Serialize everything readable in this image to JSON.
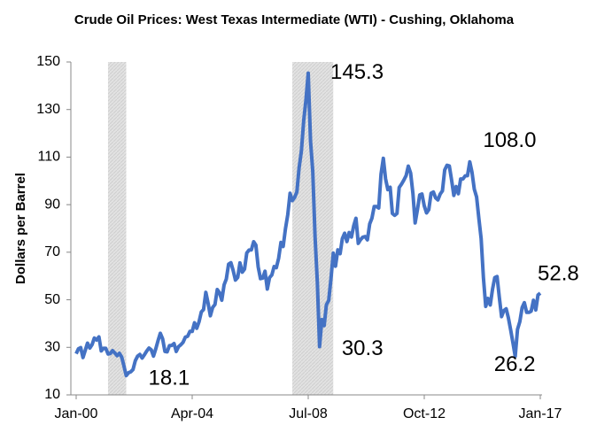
{
  "chart_data": {
    "type": "line",
    "title": "Crude Oil Prices: West Texas Intermediate (WTI) - Cushing, Oklahoma",
    "y_label": "Dollars per Barrel",
    "color": "#4472c4",
    "shade_color": "#d9d9d9",
    "xlim": [
      "2000-01",
      "2017-01"
    ],
    "xticks": [
      {
        "value": "2000-01",
        "label": "Jan-00"
      },
      {
        "value": "2004-04",
        "label": "Apr-04"
      },
      {
        "value": "2008-07",
        "label": "Jul-08"
      },
      {
        "value": "2012-10",
        "label": "Oct-12"
      },
      {
        "value": "2017-01",
        "label": "Jan-17"
      }
    ],
    "ylim": [
      10,
      150
    ],
    "yticks": [
      10,
      30,
      50,
      70,
      90,
      110,
      130,
      150
    ],
    "shaded_periods": [
      {
        "start": "2001-03",
        "end": "2001-11"
      },
      {
        "start": "2007-12",
        "end": "2009-06"
      }
    ],
    "annotations": [
      {
        "x": "2001-11",
        "value": 18.1,
        "label": "18.1"
      },
      {
        "x": "2008-07",
        "value": 145.3,
        "label": "145.3"
      },
      {
        "x": "2008-12",
        "value": 30.3,
        "label": "30.3"
      },
      {
        "x": "2014-06",
        "value": 108.0,
        "label": "108.0"
      },
      {
        "x": "2016-02",
        "value": 26.2,
        "label": "26.2"
      },
      {
        "x": "2017-01",
        "value": 52.8,
        "label": "52.8"
      }
    ],
    "x": [
      "2000-01",
      "2000-02",
      "2000-03",
      "2000-04",
      "2000-05",
      "2000-06",
      "2000-07",
      "2000-08",
      "2000-09",
      "2000-10",
      "2000-11",
      "2000-12",
      "2001-01",
      "2001-02",
      "2001-03",
      "2001-04",
      "2001-05",
      "2001-06",
      "2001-07",
      "2001-08",
      "2001-09",
      "2001-10",
      "2001-11",
      "2001-12",
      "2002-01",
      "2002-02",
      "2002-03",
      "2002-04",
      "2002-05",
      "2002-06",
      "2002-07",
      "2002-08",
      "2002-09",
      "2002-10",
      "2002-11",
      "2002-12",
      "2003-01",
      "2003-02",
      "2003-03",
      "2003-04",
      "2003-05",
      "2003-06",
      "2003-07",
      "2003-08",
      "2003-09",
      "2003-10",
      "2003-11",
      "2003-12",
      "2004-01",
      "2004-02",
      "2004-03",
      "2004-04",
      "2004-05",
      "2004-06",
      "2004-07",
      "2004-08",
      "2004-09",
      "2004-10",
      "2004-11",
      "2004-12",
      "2005-01",
      "2005-02",
      "2005-03",
      "2005-04",
      "2005-05",
      "2005-06",
      "2005-07",
      "2005-08",
      "2005-09",
      "2005-10",
      "2005-11",
      "2005-12",
      "2006-01",
      "2006-02",
      "2006-03",
      "2006-04",
      "2006-05",
      "2006-06",
      "2006-07",
      "2006-08",
      "2006-09",
      "2006-10",
      "2006-11",
      "2006-12",
      "2007-01",
      "2007-02",
      "2007-03",
      "2007-04",
      "2007-05",
      "2007-06",
      "2007-07",
      "2007-08",
      "2007-09",
      "2007-10",
      "2007-11",
      "2007-12",
      "2008-01",
      "2008-02",
      "2008-03",
      "2008-04",
      "2008-05",
      "2008-06",
      "2008-07",
      "2008-08",
      "2008-09",
      "2008-10",
      "2008-11",
      "2008-12",
      "2009-01",
      "2009-02",
      "2009-03",
      "2009-04",
      "2009-05",
      "2009-06",
      "2009-07",
      "2009-08",
      "2009-09",
      "2009-10",
      "2009-11",
      "2009-12",
      "2010-01",
      "2010-02",
      "2010-03",
      "2010-04",
      "2010-05",
      "2010-06",
      "2010-07",
      "2010-08",
      "2010-09",
      "2010-10",
      "2010-11",
      "2010-12",
      "2011-01",
      "2011-02",
      "2011-03",
      "2011-04",
      "2011-05",
      "2011-06",
      "2011-07",
      "2011-08",
      "2011-09",
      "2011-10",
      "2011-11",
      "2011-12",
      "2012-01",
      "2012-02",
      "2012-03",
      "2012-04",
      "2012-05",
      "2012-06",
      "2012-07",
      "2012-08",
      "2012-09",
      "2012-10",
      "2012-11",
      "2012-12",
      "2013-01",
      "2013-02",
      "2013-03",
      "2013-04",
      "2013-05",
      "2013-06",
      "2013-07",
      "2013-08",
      "2013-09",
      "2013-10",
      "2013-11",
      "2013-12",
      "2014-01",
      "2014-02",
      "2014-03",
      "2014-04",
      "2014-05",
      "2014-06",
      "2014-07",
      "2014-08",
      "2014-09",
      "2014-10",
      "2014-11",
      "2014-12",
      "2015-01",
      "2015-02",
      "2015-03",
      "2015-04",
      "2015-05",
      "2015-06",
      "2015-07",
      "2015-08",
      "2015-09",
      "2015-10",
      "2015-11",
      "2015-12",
      "2016-01",
      "2016-02",
      "2016-03",
      "2016-04",
      "2016-05",
      "2016-06",
      "2016-07",
      "2016-08",
      "2016-09",
      "2016-10",
      "2016-11",
      "2016-12",
      "2017-01"
    ],
    "values": [
      27.3,
      29.4,
      29.9,
      25.7,
      28.8,
      31.8,
      29.7,
      31.2,
      33.9,
      33.1,
      34.4,
      28.5,
      29.6,
      29.6,
      27.2,
      27.4,
      28.6,
      27.6,
      26.5,
      27.5,
      25.9,
      22.2,
      18.1,
      19.3,
      19.7,
      20.7,
      24.4,
      26.3,
      27.0,
      25.5,
      26.9,
      28.4,
      29.7,
      28.9,
      26.3,
      29.4,
      32.9,
      35.9,
      33.6,
      28.3,
      28.1,
      30.7,
      30.8,
      31.6,
      28.3,
      30.3,
      31.1,
      32.1,
      34.3,
      34.7,
      36.7,
      36.7,
      40.3,
      38.0,
      40.7,
      44.9,
      45.9,
      53.1,
      48.5,
      43.3,
      46.8,
      48.0,
      54.3,
      53.0,
      49.8,
      56.3,
      58.7,
      65.0,
      65.6,
      62.4,
      58.3,
      59.4,
      65.5,
      61.6,
      62.9,
      69.7,
      70.9,
      71.0,
      74.4,
      73.0,
      63.8,
      58.9,
      59.1,
      62.0,
      54.5,
      59.3,
      60.4,
      64.0,
      63.5,
      67.5,
      74.1,
      72.4,
      79.9,
      85.8,
      94.8,
      91.7,
      93.0,
      95.4,
      105.5,
      112.6,
      125.4,
      133.9,
      145.3,
      116.7,
      104.1,
      76.6,
      57.3,
      30.3,
      41.7,
      39.1,
      47.9,
      49.7,
      59.0,
      69.6,
      64.1,
      71.0,
      69.4,
      75.7,
      78.0,
      74.5,
      78.3,
      76.4,
      81.2,
      84.3,
      73.7,
      75.3,
      76.3,
      76.6,
      75.2,
      81.9,
      84.3,
      89.2,
      89.2,
      88.6,
      102.9,
      109.5,
      100.9,
      96.3,
      97.3,
      86.3,
      85.5,
      86.3,
      97.2,
      98.6,
      100.3,
      102.2,
      106.2,
      103.3,
      94.7,
      82.3,
      87.9,
      94.1,
      94.5,
      89.5,
      86.5,
      87.9,
      94.8,
      95.3,
      92.9,
      92.0,
      94.5,
      95.8,
      104.6,
      106.6,
      106.3,
      100.5,
      93.9,
      97.6,
      94.6,
      100.8,
      100.8,
      102.1,
      102.2,
      108.0,
      103.6,
      96.5,
      93.2,
      84.4,
      75.8,
      59.3,
      47.2,
      50.6,
      47.8,
      54.5,
      59.3,
      59.8,
      50.9,
      42.9,
      45.5,
      46.2,
      42.4,
      37.2,
      31.7,
      26.2,
      37.6,
      40.8,
      46.7,
      48.8,
      44.7,
      44.7,
      45.2,
      49.8,
      45.7,
      52.0,
      52.8
    ]
  }
}
